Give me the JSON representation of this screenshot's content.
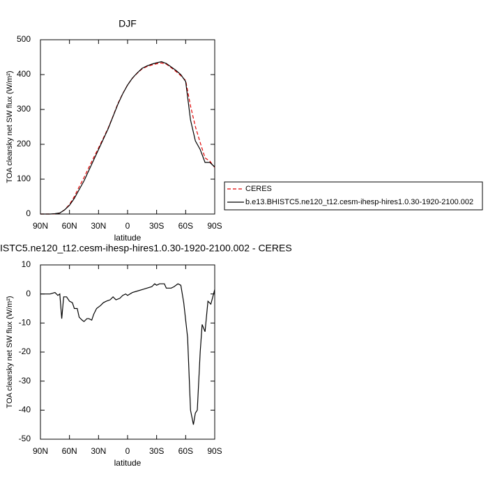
{
  "chart_data": [
    {
      "type": "line",
      "title": "DJF",
      "x_label": "latitude",
      "y_label": "TOA clearsky net SW flux (W/m²)",
      "x": [
        90,
        85,
        80,
        75,
        70,
        65,
        60,
        55,
        50,
        45,
        40,
        35,
        30,
        25,
        20,
        15,
        10,
        5,
        0,
        -5,
        -10,
        -15,
        -20,
        -25,
        -30,
        -35,
        -40,
        -45,
        -50,
        -55,
        -60,
        -65,
        -70,
        -75,
        -80,
        -85,
        -90
      ],
      "series": [
        {
          "name": "CERES",
          "color": "#e00000",
          "dash": true,
          "values": [
            0,
            0,
            0,
            0.5,
            3,
            12,
            27.5,
            50,
            78,
            104.5,
            133.5,
            162,
            189.5,
            218,
            247,
            281,
            317,
            345.5,
            370.5,
            389.5,
            404,
            416.5,
            423,
            427.5,
            431,
            433.5,
            430,
            420,
            409,
            397,
            383,
            310,
            251,
            205,
            161,
            151.5,
            133.5
          ]
        },
        {
          "name": "b.e13.BHISTC5.ne120_t12.cesm-ihesp-hires1.0.30-1920-2100.002",
          "color": "#000000",
          "dash": false,
          "values": [
            0,
            0,
            0,
            1,
            3,
            12,
            25,
            45,
            70,
            95,
            125,
            155,
            185,
            215,
            245,
            280,
            315,
            345,
            370,
            390,
            405,
            418,
            425,
            430,
            434,
            437,
            432,
            422,
            412,
            400,
            380,
            270,
            210,
            185,
            148,
            148,
            135
          ]
        }
      ],
      "xlim": [
        90,
        -90
      ],
      "xticks": [
        {
          "value": 90,
          "label": "90N"
        },
        {
          "value": 60,
          "label": "60N"
        },
        {
          "value": 30,
          "label": "30N"
        },
        0,
        {
          "value": -30,
          "label": "30S"
        },
        {
          "value": -60,
          "label": "60S"
        },
        {
          "value": -90,
          "label": "90S"
        }
      ],
      "ylim": [
        0,
        500
      ],
      "yticks": [
        0,
        100,
        200,
        300,
        400,
        500
      ],
      "legend": "right"
    },
    {
      "type": "line",
      "title": "ISTC5.ne120_t12.cesm-ihesp-hires1.0.30-1920-2100.002 - CERES",
      "x_label": "latitude",
      "y_label": "TOA clearsky net SW flux (W/m²)",
      "x": [
        90,
        80,
        75,
        72,
        70,
        68,
        66,
        63,
        60,
        57,
        55,
        52,
        50,
        47,
        45,
        42,
        40,
        37,
        35,
        32,
        28,
        25,
        22,
        18,
        15,
        12,
        8,
        5,
        2,
        0,
        -5,
        -10,
        -15,
        -20,
        -25,
        -28,
        -30,
        -33,
        -38,
        -40,
        -45,
        -48,
        -52,
        -55,
        -58,
        -62,
        -65,
        -68,
        -70,
        -72,
        -75,
        -77,
        -80,
        -83,
        -86,
        -90
      ],
      "series": [
        {
          "color": "#000000",
          "dash": false,
          "values": [
            0,
            0,
            0.5,
            -0.5,
            0,
            -8.5,
            -1,
            -1,
            -2.5,
            -3,
            -5,
            -5,
            -8,
            -9,
            -9.5,
            -8.5,
            -8.5,
            -9,
            -7,
            -5,
            -4,
            -3,
            -2.5,
            -2,
            -1,
            -2,
            -1.5,
            -0.5,
            0,
            -0.5,
            0.5,
            1,
            1.5,
            2,
            2.5,
            3.5,
            3,
            3.5,
            3.5,
            2,
            2,
            2.5,
            3.5,
            3,
            -3,
            -15,
            -40,
            -45,
            -41,
            -40,
            -20,
            -10.5,
            -13,
            -2.5,
            -3.5,
            1.5
          ]
        }
      ],
      "xlim": [
        90,
        -90
      ],
      "xticks": [
        {
          "value": 90,
          "label": "90N"
        },
        {
          "value": 60,
          "label": "60N"
        },
        {
          "value": 30,
          "label": "30N"
        },
        0,
        {
          "value": -30,
          "label": "30S"
        },
        {
          "value": -60,
          "label": "60S"
        },
        {
          "value": -90,
          "label": "90S"
        }
      ],
      "ylim": [
        -50,
        10
      ],
      "yticks": [
        -50,
        -40,
        -30,
        -20,
        -10,
        0,
        10
      ]
    }
  ]
}
